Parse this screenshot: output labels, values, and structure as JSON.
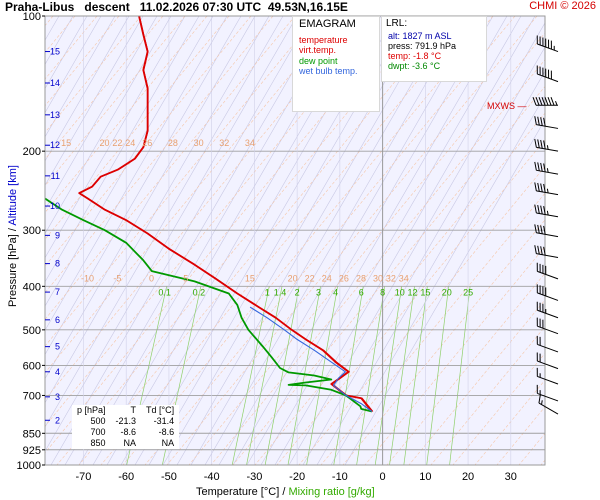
{
  "header": {
    "station": "Praha-Libus",
    "mode": "descent",
    "datetime": "11.02.2026 07:30 UTC",
    "coords": "49.53N,16.15E",
    "credit": "CHMI © 2026"
  },
  "legend": {
    "title": "EMAGRAM",
    "items": [
      {
        "label": "temperature",
        "color": "#dd0000"
      },
      {
        "label": "virt.temp.",
        "color": "#dd0000"
      },
      {
        "label": "dew point",
        "color": "#009900"
      },
      {
        "label": "wet bulb temp.",
        "color": "#3366dd"
      }
    ]
  },
  "lrl": {
    "title": "LRL:",
    "alt": "alt: 1827 m ASL",
    "press": "press: 791.9 hPa",
    "temp": "temp: -1.8 °C",
    "dwpt": "dwpt: -3.6 °C",
    "alt_color": "#0000aa",
    "press_color": "#000000",
    "temp_color": "#dd0000",
    "dwpt_color": "#008800"
  },
  "table": {
    "headers": [
      "p [hPa]",
      "T",
      "Td [°C]"
    ],
    "rows": [
      [
        "500",
        "-21.3",
        "-31.4"
      ],
      [
        "700",
        "-8.6",
        "-8.6"
      ],
      [
        "850",
        "NA",
        "NA"
      ]
    ]
  },
  "mxws_label": "MXWS",
  "axis": {
    "xlabel_temp": "Temperature [°C]",
    "xlabel_sep": "/",
    "xlabel_mix": "Mixing ratio [g/kg]",
    "ylabel_press": "Pressure [hPa]",
    "ylabel_sep": "/",
    "ylabel_alt": "Altitude [km]"
  },
  "chart_data": {
    "type": "line",
    "diagram": "emagram",
    "x_axis": {
      "label": "Temperature [°C]",
      "ticks": [
        -70,
        -60,
        -50,
        -40,
        -30,
        -20,
        -10,
        0,
        10,
        20,
        30
      ],
      "range": [
        -79,
        38
      ]
    },
    "y_axis": {
      "label": "Pressure [hPa]",
      "scale": "log",
      "ticks": [
        100,
        200,
        300,
        400,
        500,
        600,
        700,
        850,
        925,
        1000
      ],
      "range": [
        1000,
        100
      ]
    },
    "altitude_ticks_km": [
      2,
      3,
      4,
      5,
      6,
      7,
      8,
      9,
      10,
      11,
      12,
      13,
      14,
      15
    ],
    "altitude_tick_pressures": [
      795,
      705,
      620,
      545,
      475,
      412,
      356,
      308,
      265,
      227,
      194,
      166,
      141,
      120
    ],
    "isotherm_labels_upper": [
      {
        "v": "15",
        "t": -75
      },
      {
        "v": "20",
        "t": -66
      },
      {
        "v": "22",
        "t": -63
      },
      {
        "v": "24",
        "t": -60
      },
      {
        "v": "26",
        "t": -56
      },
      {
        "v": "28",
        "t": -50
      },
      {
        "v": "30",
        "t": -44
      },
      {
        "v": "32",
        "t": -38
      },
      {
        "v": "34",
        "t": -32
      }
    ],
    "isotherm_labels_lower": [
      {
        "v": "-10",
        "t": -70
      },
      {
        "v": "-5",
        "t": -63
      },
      {
        "v": "0",
        "t": -55
      },
      {
        "v": "5",
        "t": -47
      },
      {
        "v": "15",
        "t": -32
      },
      {
        "v": "20",
        "t": -22
      },
      {
        "v": "22",
        "t": -18
      },
      {
        "v": "24",
        "t": -14
      },
      {
        "v": "26",
        "t": -10
      },
      {
        "v": "28",
        "t": -6
      },
      {
        "v": "30",
        "t": -2
      },
      {
        "v": "32",
        "t": 1
      },
      {
        "v": "34",
        "t": 4
      }
    ],
    "mixing_ratio_labels": [
      "0.1",
      "0.2",
      "1",
      "1.4",
      "2",
      "3",
      "4",
      "6",
      "8",
      "10",
      "12",
      "15",
      "20",
      "25"
    ],
    "mixing_ratio_label_temps": [
      -51,
      -43,
      -27,
      -24,
      -20,
      -15,
      -11,
      -5,
      0,
      4,
      7,
      10,
      15,
      20
    ],
    "series": [
      {
        "name": "temperature",
        "color": "#dd0000",
        "points": [
          [
            -2.5,
            760
          ],
          [
            -5,
            710
          ],
          [
            -8.6,
            700
          ],
          [
            -12,
            660
          ],
          [
            -10,
            640
          ],
          [
            -8,
            620
          ],
          [
            -11,
            590
          ],
          [
            -14,
            555
          ],
          [
            -18,
            525
          ],
          [
            -21.3,
            500
          ],
          [
            -25,
            470
          ],
          [
            -29,
            445
          ],
          [
            -34,
            415
          ],
          [
            -39,
            385
          ],
          [
            -44,
            358
          ],
          [
            -50,
            330
          ],
          [
            -55,
            305
          ],
          [
            -60,
            285
          ],
          [
            -65,
            270
          ],
          [
            -69,
            255
          ],
          [
            -71,
            248
          ],
          [
            -68,
            240
          ],
          [
            -66,
            228
          ],
          [
            -62,
            220
          ],
          [
            -58,
            208
          ],
          [
            -56,
            196
          ],
          [
            -55,
            180
          ],
          [
            -55,
            160
          ],
          [
            -55,
            145
          ],
          [
            -56,
            132
          ],
          [
            -55,
            120
          ],
          [
            -56,
            110
          ],
          [
            -57,
            100
          ]
        ]
      },
      {
        "name": "virt.temp.",
        "color": "#dd0000",
        "points": [
          [
            -2.3,
            760
          ],
          [
            -4.8,
            710
          ],
          [
            -8.4,
            700
          ],
          [
            -11.8,
            660
          ],
          [
            -9.8,
            640
          ],
          [
            -7.8,
            620
          ],
          [
            -10.8,
            590
          ],
          [
            -13.8,
            555
          ],
          [
            -17.9,
            525
          ],
          [
            -21.2,
            500
          ],
          [
            -24.9,
            470
          ],
          [
            -28.9,
            445
          ],
          [
            -33.9,
            415
          ],
          [
            -38.9,
            385
          ],
          [
            -43.9,
            358
          ],
          [
            -49.9,
            330
          ],
          [
            -54.9,
            305
          ],
          [
            -59.9,
            285
          ],
          [
            -64.9,
            270
          ],
          [
            -68.9,
            255
          ],
          [
            -70.9,
            248
          ],
          [
            -67.9,
            240
          ],
          [
            -65.9,
            228
          ],
          [
            -61.9,
            220
          ],
          [
            -57.9,
            208
          ],
          [
            -55.9,
            196
          ],
          [
            -54.9,
            180
          ],
          [
            -54.9,
            160
          ],
          [
            -54.9,
            145
          ],
          [
            -55.9,
            132
          ],
          [
            -54.9,
            120
          ],
          [
            -55.9,
            110
          ],
          [
            -56.9,
            100
          ]
        ]
      },
      {
        "name": "dew point",
        "color": "#009900",
        "points": [
          [
            -2.5,
            760
          ],
          [
            -5,
            750
          ],
          [
            -5.2,
            740
          ],
          [
            -8.6,
            700
          ],
          [
            -12,
            680
          ],
          [
            -18,
            665
          ],
          [
            -22,
            663
          ],
          [
            -18,
            655
          ],
          [
            -12,
            645
          ],
          [
            -16,
            632
          ],
          [
            -22,
            622
          ],
          [
            -24,
            608
          ],
          [
            -26,
            575
          ],
          [
            -28,
            545
          ],
          [
            -31.4,
            500
          ],
          [
            -33,
            470
          ],
          [
            -34,
            440
          ],
          [
            -36,
            415
          ],
          [
            -44,
            390
          ],
          [
            -54,
            370
          ],
          [
            -56,
            350
          ],
          [
            -60,
            320
          ],
          [
            -65,
            300
          ],
          [
            -70,
            285
          ],
          [
            -75,
            270
          ],
          [
            -79,
            255
          ],
          [
            -84,
            238
          ],
          [
            -88,
            220
          ]
        ]
      },
      {
        "name": "wet bulb temp.",
        "color": "#3366dd",
        "points": [
          [
            -2.5,
            760
          ],
          [
            -5,
            730
          ],
          [
            -8.6,
            700
          ],
          [
            -11.5,
            665
          ],
          [
            -10.3,
            640
          ],
          [
            -8.7,
            620
          ],
          [
            -12,
            590
          ],
          [
            -16,
            555
          ],
          [
            -20,
            525
          ],
          [
            -23,
            500
          ],
          [
            -27,
            470
          ],
          [
            -31,
            445
          ]
        ]
      }
    ],
    "wind_barbs": [
      {
        "p": 120,
        "dir": 290,
        "kt": 65
      },
      {
        "p": 140,
        "dir": 290,
        "kt": 60
      },
      {
        "p": 158,
        "dir": 270,
        "kt": 75
      },
      {
        "p": 178,
        "dir": 280,
        "kt": 40
      },
      {
        "p": 200,
        "dir": 280,
        "kt": 45
      },
      {
        "p": 225,
        "dir": 280,
        "kt": 45
      },
      {
        "p": 250,
        "dir": 280,
        "kt": 45
      },
      {
        "p": 280,
        "dir": 280,
        "kt": 45
      },
      {
        "p": 310,
        "dir": 280,
        "kt": 40
      },
      {
        "p": 345,
        "dir": 280,
        "kt": 40
      },
      {
        "p": 385,
        "dir": 290,
        "kt": 40
      },
      {
        "p": 430,
        "dir": 290,
        "kt": 40
      },
      {
        "p": 470,
        "dir": 290,
        "kt": 35
      },
      {
        "p": 510,
        "dir": 290,
        "kt": 30
      },
      {
        "p": 560,
        "dir": 290,
        "kt": 20
      },
      {
        "p": 610,
        "dir": 290,
        "kt": 20
      },
      {
        "p": 660,
        "dir": 290,
        "kt": 15
      },
      {
        "p": 720,
        "dir": 290,
        "kt": 15
      },
      {
        "p": 770,
        "dir": 300,
        "kt": 15
      }
    ]
  }
}
